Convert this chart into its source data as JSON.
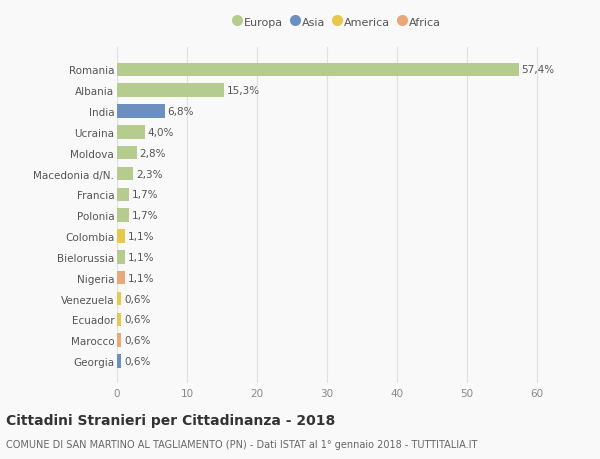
{
  "countries": [
    "Romania",
    "Albania",
    "India",
    "Ucraina",
    "Moldova",
    "Macedonia d/N.",
    "Francia",
    "Polonia",
    "Colombia",
    "Bielorussia",
    "Nigeria",
    "Venezuela",
    "Ecuador",
    "Marocco",
    "Georgia"
  ],
  "values": [
    57.4,
    15.3,
    6.8,
    4.0,
    2.8,
    2.3,
    1.7,
    1.7,
    1.1,
    1.1,
    1.1,
    0.6,
    0.6,
    0.6,
    0.6
  ],
  "labels": [
    "57,4%",
    "15,3%",
    "6,8%",
    "4,0%",
    "2,8%",
    "2,3%",
    "1,7%",
    "1,7%",
    "1,1%",
    "1,1%",
    "1,1%",
    "0,6%",
    "0,6%",
    "0,6%",
    "0,6%"
  ],
  "continents": [
    "Europa",
    "Europa",
    "Asia",
    "Europa",
    "Europa",
    "Europa",
    "Europa",
    "Europa",
    "America",
    "Europa",
    "Africa",
    "America",
    "America",
    "Africa",
    "Asia"
  ],
  "colors": {
    "Europa": "#b5cc8e",
    "Asia": "#6b8fbf",
    "America": "#e8c84a",
    "Africa": "#e8a878"
  },
  "legend_colors": {
    "Europa": "#b5cc8e",
    "Asia": "#6b8fbf",
    "America": "#e8c84a",
    "Africa": "#e8a878"
  },
  "xlim": [
    0,
    63
  ],
  "xticks": [
    0,
    10,
    20,
    30,
    40,
    50,
    60
  ],
  "title": "Cittadini Stranieri per Cittadinanza - 2018",
  "subtitle": "COMUNE DI SAN MARTINO AL TAGLIAMENTO (PN) - Dati ISTAT al 1° gennaio 2018 - TUTTITALIA.IT",
  "bg_color": "#f9f9f9",
  "grid_color": "#e0e0e0",
  "bar_height": 0.65,
  "label_fontsize": 7.5,
  "ytick_fontsize": 7.5,
  "xtick_fontsize": 7.5,
  "title_fontsize": 10,
  "subtitle_fontsize": 7,
  "legend_fontsize": 8
}
